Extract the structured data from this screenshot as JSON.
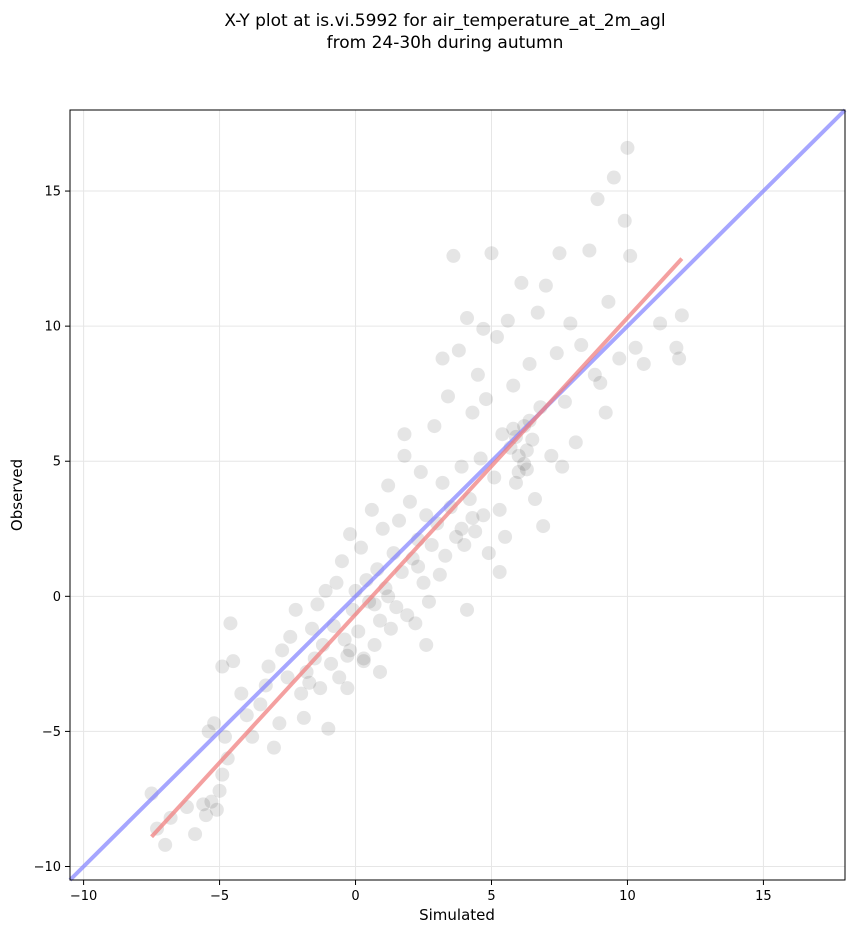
{
  "chart_data": {
    "type": "scatter",
    "title_lines": [
      "X-Y plot at is.vi.5992 for air_temperature_at_2m_agl",
      "from 24-30h during autumn"
    ],
    "xlabel": "Simulated",
    "ylabel": "Observed",
    "xlim": [
      -10.5,
      18
    ],
    "ylim": [
      -10.5,
      18
    ],
    "xticks": [
      -10,
      -5,
      0,
      5,
      10,
      15
    ],
    "yticks": [
      -10,
      -5,
      0,
      5,
      10,
      15
    ],
    "tick_labels": [
      "−10",
      "−5",
      "0",
      "5",
      "10",
      "15"
    ],
    "grid": true,
    "point_color": "#000000",
    "point_alpha": 0.1,
    "fit_line": {
      "color": "#f08080",
      "x": [
        -7.5,
        12
      ],
      "y": [
        -8.9,
        12.5
      ]
    },
    "identity_line": {
      "color": "#8080ff",
      "x": [
        -10.5,
        18
      ],
      "y": [
        -10.5,
        18
      ]
    },
    "points": [
      [
        -7.5,
        -7.3
      ],
      [
        -7.3,
        -8.6
      ],
      [
        -7.0,
        -9.2
      ],
      [
        -6.8,
        -8.2
      ],
      [
        -6.2,
        -7.8
      ],
      [
        -5.9,
        -8.8
      ],
      [
        -5.6,
        -7.7
      ],
      [
        -5.5,
        -8.1
      ],
      [
        -5.3,
        -7.6
      ],
      [
        -5.1,
        -7.9
      ],
      [
        -5.0,
        -7.2
      ],
      [
        -4.9,
        -6.6
      ],
      [
        -4.7,
        -6.0
      ],
      [
        -4.8,
        -5.2
      ],
      [
        -5.2,
        -4.7
      ],
      [
        -5.4,
        -5.0
      ],
      [
        -4.6,
        -1.0
      ],
      [
        -4.9,
        -2.6
      ],
      [
        -4.5,
        -2.4
      ],
      [
        -4.2,
        -3.6
      ],
      [
        -4.0,
        -4.4
      ],
      [
        -3.8,
        -5.2
      ],
      [
        -3.5,
        -4.0
      ],
      [
        -3.3,
        -3.3
      ],
      [
        -3.2,
        -2.6
      ],
      [
        -3.0,
        -5.6
      ],
      [
        -2.8,
        -4.7
      ],
      [
        -2.7,
        -2.0
      ],
      [
        -2.5,
        -3.0
      ],
      [
        -2.4,
        -1.5
      ],
      [
        -2.2,
        -0.5
      ],
      [
        -2.0,
        -3.6
      ],
      [
        -1.9,
        -4.5
      ],
      [
        -1.8,
        -2.8
      ],
      [
        -1.6,
        -1.2
      ],
      [
        -1.5,
        -2.3
      ],
      [
        -1.4,
        -0.3
      ],
      [
        -1.3,
        -3.4
      ],
      [
        -1.2,
        -1.8
      ],
      [
        -1.1,
        0.2
      ],
      [
        -1.0,
        -4.9
      ],
      [
        -0.9,
        -2.5
      ],
      [
        -0.8,
        -1.1
      ],
      [
        -0.7,
        0.5
      ],
      [
        -0.6,
        -3.0
      ],
      [
        -0.5,
        1.3
      ],
      [
        -0.4,
        -1.6
      ],
      [
        -0.3,
        -2.2
      ],
      [
        -0.2,
        2.3
      ],
      [
        -0.1,
        -0.5
      ],
      [
        0.0,
        0.2
      ],
      [
        0.1,
        -1.3
      ],
      [
        0.2,
        1.8
      ],
      [
        0.3,
        -2.4
      ],
      [
        0.4,
        0.6
      ],
      [
        0.5,
        -0.2
      ],
      [
        0.6,
        3.2
      ],
      [
        0.7,
        -1.8
      ],
      [
        0.8,
        1.0
      ],
      [
        0.9,
        -0.9
      ],
      [
        1.0,
        2.5
      ],
      [
        1.1,
        0.3
      ],
      [
        1.2,
        4.1
      ],
      [
        1.3,
        -1.2
      ],
      [
        1.4,
        1.6
      ],
      [
        1.5,
        -0.4
      ],
      [
        1.6,
        2.8
      ],
      [
        1.7,
        0.9
      ],
      [
        1.8,
        5.2
      ],
      [
        1.9,
        -0.7
      ],
      [
        2.0,
        3.5
      ],
      [
        2.1,
        1.4
      ],
      [
        2.2,
        -1.0
      ],
      [
        2.3,
        2.1
      ],
      [
        2.4,
        4.6
      ],
      [
        2.5,
        0.5
      ],
      [
        2.6,
        3.0
      ],
      [
        2.7,
        -0.2
      ],
      [
        2.8,
        1.9
      ],
      [
        2.9,
        6.3
      ],
      [
        3.0,
        2.7
      ],
      [
        3.1,
        0.8
      ],
      [
        3.2,
        4.2
      ],
      [
        3.3,
        1.5
      ],
      [
        3.4,
        7.4
      ],
      [
        3.5,
        3.3
      ],
      [
        3.6,
        12.6
      ],
      [
        3.7,
        2.2
      ],
      [
        3.8,
        9.1
      ],
      [
        3.9,
        4.8
      ],
      [
        4.0,
        1.9
      ],
      [
        4.1,
        10.3
      ],
      [
        4.2,
        3.6
      ],
      [
        4.3,
        6.8
      ],
      [
        4.4,
        2.4
      ],
      [
        4.5,
        8.2
      ],
      [
        4.6,
        5.1
      ],
      [
        4.7,
        3.0
      ],
      [
        4.8,
        7.3
      ],
      [
        4.9,
        1.6
      ],
      [
        5.0,
        12.7
      ],
      [
        5.1,
        4.4
      ],
      [
        5.2,
        9.6
      ],
      [
        5.3,
        3.2
      ],
      [
        5.4,
        6.0
      ],
      [
        5.5,
        2.2
      ],
      [
        5.6,
        10.2
      ],
      [
        5.7,
        5.5
      ],
      [
        5.8,
        7.8
      ],
      [
        5.9,
        4.2
      ],
      [
        6.0,
        5.2
      ],
      [
        6.1,
        11.6
      ],
      [
        6.2,
        6.3
      ],
      [
        6.3,
        4.7
      ],
      [
        6.4,
        8.6
      ],
      [
        6.5,
        5.8
      ],
      [
        6.6,
        3.6
      ],
      [
        6.7,
        10.5
      ],
      [
        6.8,
        7.0
      ],
      [
        7.0,
        11.5
      ],
      [
        7.2,
        5.2
      ],
      [
        7.4,
        9.0
      ],
      [
        7.5,
        12.7
      ],
      [
        7.7,
        7.2
      ],
      [
        7.9,
        10.1
      ],
      [
        8.1,
        5.7
      ],
      [
        8.3,
        9.3
      ],
      [
        8.6,
        12.8
      ],
      [
        8.8,
        8.2
      ],
      [
        8.9,
        14.7
      ],
      [
        9.2,
        6.8
      ],
      [
        9.3,
        10.9
      ],
      [
        9.5,
        15.5
      ],
      [
        9.7,
        8.8
      ],
      [
        9.9,
        13.9
      ],
      [
        10.0,
        16.6
      ],
      [
        10.1,
        12.6
      ],
      [
        10.3,
        9.2
      ],
      [
        10.6,
        8.6
      ],
      [
        11.2,
        10.1
      ],
      [
        11.8,
        9.2
      ],
      [
        12.0,
        10.4
      ],
      [
        11.9,
        8.8
      ],
      [
        9.0,
        7.9
      ],
      [
        7.6,
        4.8
      ],
      [
        6.9,
        2.6
      ],
      [
        5.3,
        0.9
      ],
      [
        4.1,
        -0.5
      ],
      [
        2.6,
        -1.8
      ],
      [
        0.9,
        -2.8
      ],
      [
        -0.3,
        -3.4
      ],
      [
        1.8,
        6.0
      ],
      [
        3.2,
        8.8
      ],
      [
        4.7,
        9.9
      ],
      [
        6.4,
        6.5
      ],
      [
        5.9,
        5.9
      ],
      [
        6.2,
        4.9
      ],
      [
        6.0,
        4.6
      ],
      [
        5.8,
        6.2
      ],
      [
        6.3,
        5.4
      ],
      [
        3.9,
        2.5
      ],
      [
        4.3,
        2.9
      ],
      [
        2.3,
        1.1
      ],
      [
        1.2,
        0.0
      ],
      [
        0.7,
        -0.3
      ],
      [
        -0.2,
        -2.0
      ],
      [
        0.3,
        -2.3
      ],
      [
        -1.7,
        -3.2
      ]
    ]
  }
}
